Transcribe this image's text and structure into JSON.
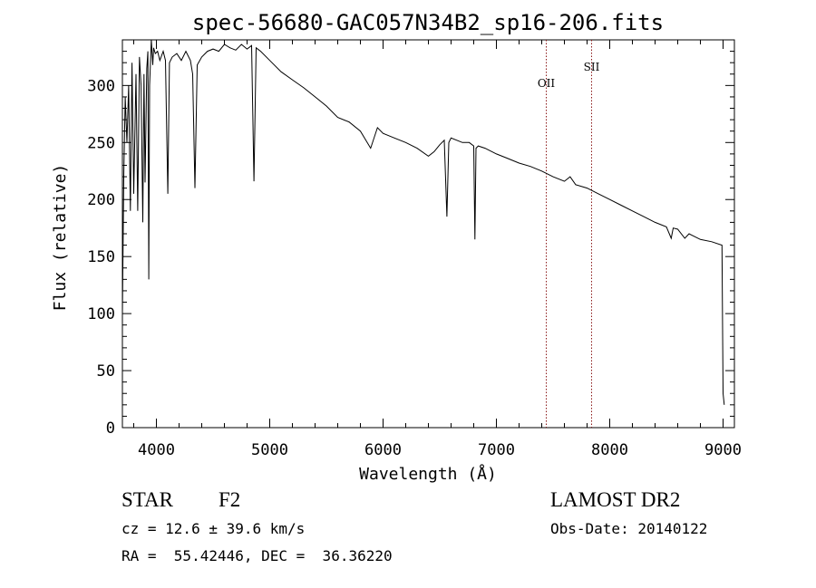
{
  "chart_data": {
    "type": "line",
    "title": "spec-56680-GAC057N34B2_sp16-206.fits",
    "xlabel": "Wavelength (Å)",
    "ylabel": "Flux (relative)",
    "xlim": [
      3700,
      9100
    ],
    "ylim": [
      0,
      340
    ],
    "xticks": [
      4000,
      5000,
      6000,
      7000,
      8000,
      9000
    ],
    "yticks": [
      0,
      50,
      100,
      150,
      200,
      250,
      300
    ],
    "grid": false,
    "series": [
      {
        "x": [
          3700,
          3712,
          3725,
          3740,
          3755,
          3770,
          3785,
          3800,
          3820,
          3835,
          3850,
          3865,
          3880,
          3890,
          3900,
          3915,
          3925,
          3933,
          3940,
          3955,
          3968,
          3975,
          3990,
          4010,
          4030,
          4060,
          4080,
          4101,
          4115,
          4140,
          4180,
          4220,
          4260,
          4300,
          4320,
          4340,
          4360,
          4400,
          4450,
          4500,
          4550,
          4600,
          4650,
          4700,
          4750,
          4800,
          4840,
          4861,
          4880,
          4920,
          5000,
          5100,
          5200,
          5300,
          5400,
          5500,
          5600,
          5700,
          5800,
          5890,
          5950,
          6000,
          6100,
          6200,
          6300,
          6400,
          6450,
          6500,
          6540,
          6563,
          6580,
          6600,
          6650,
          6700,
          6760,
          6800,
          6810,
          6820,
          6840,
          6900,
          7000,
          7100,
          7200,
          7300,
          7400,
          7500,
          7600,
          7650,
          7700,
          7800,
          7900,
          8000,
          8100,
          8200,
          8300,
          8400,
          8500,
          8542,
          8560,
          8600,
          8662,
          8700,
          8800,
          8900,
          8990,
          9000,
          9010
        ],
        "values": [
          100,
          220,
          290,
          250,
          300,
          190,
          320,
          205,
          310,
          190,
          325,
          300,
          180,
          310,
          215,
          315,
          330,
          130,
          300,
          340,
          318,
          333,
          328,
          330,
          322,
          330,
          322,
          205,
          320,
          325,
          328,
          322,
          330,
          322,
          310,
          210,
          318,
          325,
          330,
          332,
          330,
          336,
          333,
          331,
          336,
          332,
          335,
          216,
          333,
          330,
          322,
          312,
          305,
          298,
          290,
          282,
          272,
          268,
          260,
          245,
          263,
          258,
          254,
          250,
          245,
          238,
          242,
          248,
          252,
          185,
          250,
          254,
          252,
          250,
          250,
          247,
          165,
          245,
          247,
          245,
          240,
          236,
          232,
          229,
          225,
          220,
          216,
          220,
          213,
          210,
          205,
          200,
          195,
          190,
          185,
          180,
          176,
          166,
          175,
          174,
          166,
          170,
          165,
          163,
          160,
          30,
          20
        ]
      }
    ],
    "annotations": [
      {
        "label": "OII",
        "x": 7440
      },
      {
        "label": "SII",
        "x": 7840
      }
    ]
  },
  "info": {
    "object_class": "STAR",
    "subclass": "F2",
    "survey": "LAMOST DR2",
    "cz": "cz = 12.6 ± 39.6 km/s",
    "obs_date": "Obs-Date: 20140122",
    "coords": "RA =  55.42446, DEC =  36.36220"
  },
  "colors": {
    "line": "#000000",
    "marker_line": "#8b1a1a"
  }
}
